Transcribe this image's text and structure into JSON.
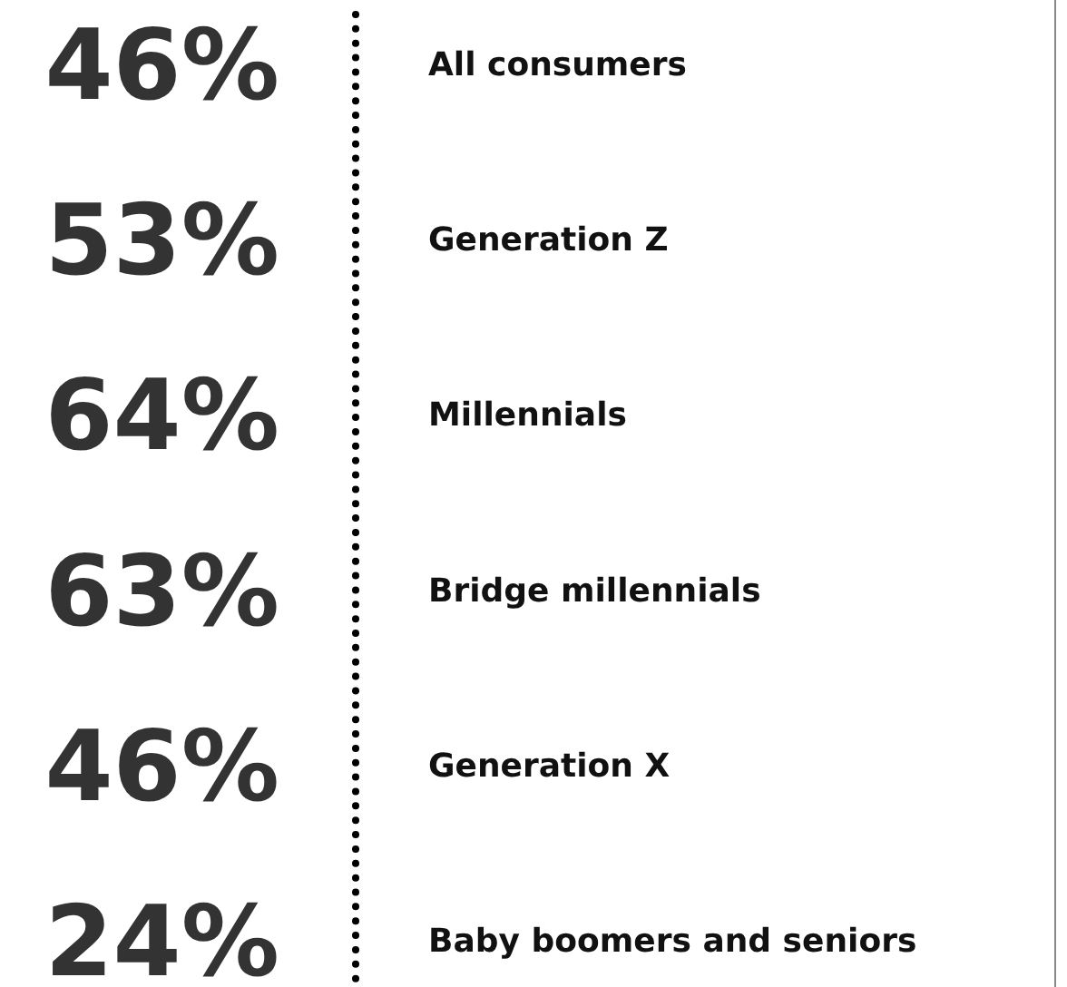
{
  "chart_data": {
    "type": "other",
    "categories": [
      "All consumers",
      "Generation Z",
      "Millennials",
      "Bridge millennials",
      "Generation X",
      "Baby boomers and seniors"
    ],
    "values": [
      46,
      53,
      64,
      63,
      46,
      24
    ],
    "value_labels": [
      "46%",
      "53%",
      "64%",
      "63%",
      "46%",
      "24%"
    ],
    "color": "#000000"
  }
}
